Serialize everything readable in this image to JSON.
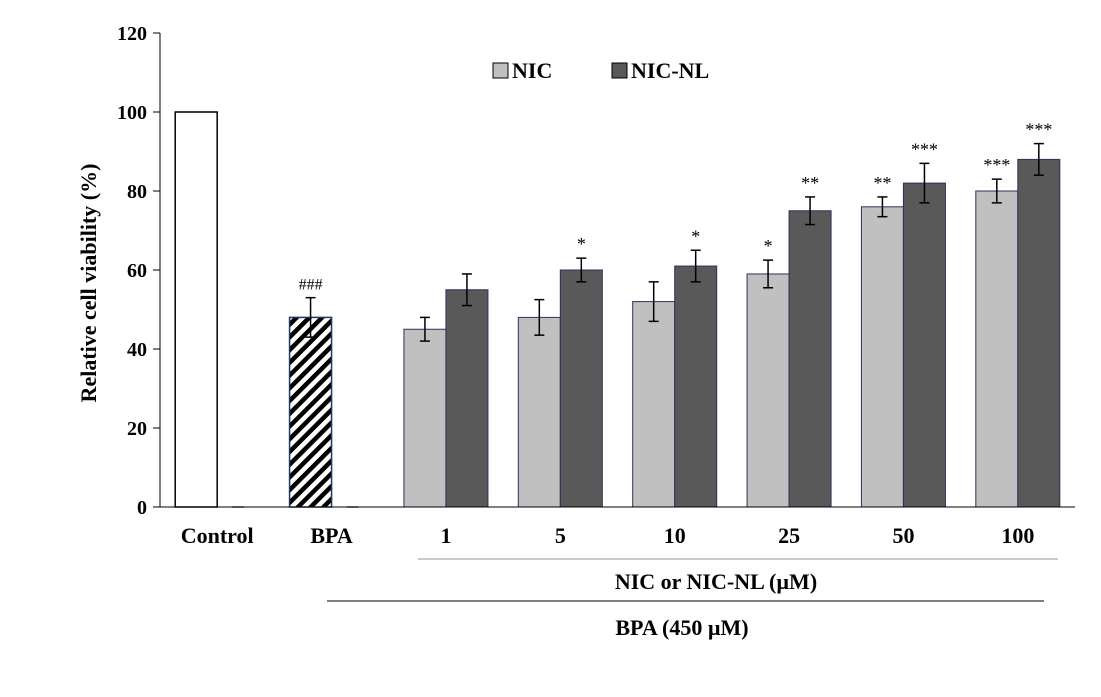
{
  "chart_data": {
    "type": "bar",
    "title": "",
    "ylabel": "Relative cell viability (%)",
    "ylim": [
      0,
      120
    ],
    "yticks": [
      0,
      20,
      40,
      60,
      80,
      100,
      120
    ],
    "grid": false,
    "legend_position": "top-center",
    "categories": [
      "Control",
      "BPA",
      "1",
      "5",
      "10",
      "25",
      "50",
      "100"
    ],
    "series": [
      {
        "name": "NIC",
        "color": "#c0c0c0",
        "values": [
          100,
          48,
          45,
          48,
          52,
          59,
          76,
          80
        ],
        "errors": [
          0,
          5,
          3,
          4.5,
          5,
          3.5,
          2.5,
          3
        ],
        "annotations": [
          "",
          "###",
          "",
          "",
          "",
          "*",
          "**",
          "***"
        ]
      },
      {
        "name": "NIC-NL",
        "color": "#595959",
        "values": [
          0,
          0,
          55,
          60,
          61,
          75,
          82,
          88
        ],
        "errors": [
          0,
          0,
          4,
          3,
          4,
          3.5,
          5,
          4
        ],
        "annotations": [
          "",
          "",
          "",
          "*",
          "*",
          "**",
          "***",
          "***"
        ]
      }
    ],
    "special_fills": {
      "Control": "white",
      "BPA": "hatched"
    },
    "group_labels": [
      {
        "text": "NIC or NIC-NL (µM)",
        "from": "1",
        "to": "100"
      },
      {
        "text": "BPA (450 µM)",
        "from": "BPA",
        "to": "100"
      }
    ]
  }
}
